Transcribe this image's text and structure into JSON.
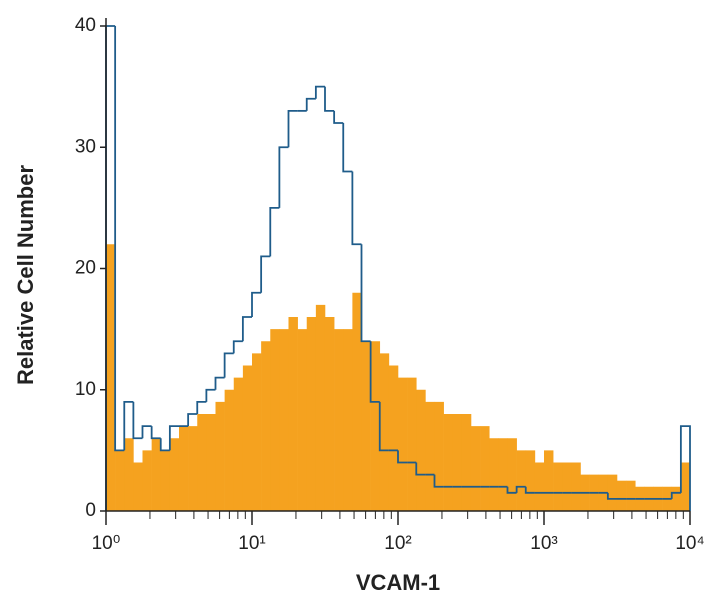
{
  "chart_data": {
    "type": "histogram",
    "xlabel": "VCAM-1",
    "ylabel": "Relative Cell Number",
    "xlog": true,
    "xlim": [
      1,
      10000
    ],
    "ylim": [
      0,
      40
    ],
    "xticks": [
      {
        "value": 1,
        "label": "10⁰"
      },
      {
        "value": 10,
        "label": "10¹"
      },
      {
        "value": 100,
        "label": "10²"
      },
      {
        "value": 1000,
        "label": "10³"
      },
      {
        "value": 10000,
        "label": "10⁴"
      }
    ],
    "yticks": [
      0,
      10,
      20,
      30,
      40
    ],
    "minor_ticks": true,
    "bins": [
      1,
      1.155,
      1.334,
      1.54,
      1.778,
      2.054,
      2.371,
      2.738,
      3.162,
      3.652,
      4.217,
      4.87,
      5.623,
      6.494,
      7.499,
      8.66,
      10,
      11.55,
      13.34,
      15.4,
      17.78,
      20.54,
      23.71,
      27.38,
      31.62,
      36.52,
      42.17,
      48.7,
      56.23,
      64.94,
      74.99,
      86.6,
      100,
      115.5,
      133.4,
      154,
      177.8,
      205.4,
      237.1,
      273.8,
      316.2,
      365.2,
      421.7,
      487,
      562.3,
      649.4,
      749.9,
      866,
      1000,
      1155,
      1334,
      1540,
      1778,
      2054,
      2371,
      2738,
      3162,
      3652,
      4217,
      4870,
      5623,
      6494,
      7499,
      8660,
      10000
    ],
    "series": [
      {
        "color": "#f5a21f",
        "fill": true,
        "values": [
          22,
          5,
          6,
          4,
          5,
          6,
          5,
          6,
          7,
          7,
          8,
          8,
          9,
          10,
          11,
          12,
          13,
          14,
          15,
          15,
          16,
          15,
          16,
          17,
          16,
          15,
          15,
          18,
          14,
          14,
          13,
          12,
          11,
          11,
          10,
          9,
          9,
          8,
          8,
          8,
          7,
          7,
          6,
          6,
          6,
          5,
          5,
          4,
          5,
          4,
          4,
          4,
          3,
          3,
          3,
          3,
          2.5,
          2.5,
          2,
          2,
          2,
          2,
          2,
          4
        ]
      },
      {
        "color": "#1f5c8a",
        "fill": false,
        "values": [
          40,
          5,
          9,
          6,
          7,
          6,
          5,
          7,
          7,
          8,
          9,
          10,
          11,
          13,
          14,
          16,
          18,
          21,
          25,
          30,
          33,
          33,
          34,
          35,
          33,
          32,
          28,
          22,
          14,
          9,
          5,
          5,
          4,
          4,
          3,
          3,
          2,
          2,
          2,
          2,
          2,
          2,
          2,
          2,
          1.5,
          2,
          1.5,
          1.5,
          1.5,
          1.5,
          1.5,
          1.5,
          1.5,
          1.5,
          1.5,
          1,
          1,
          1,
          1,
          1,
          1,
          1,
          1.5,
          7
        ]
      }
    ]
  }
}
